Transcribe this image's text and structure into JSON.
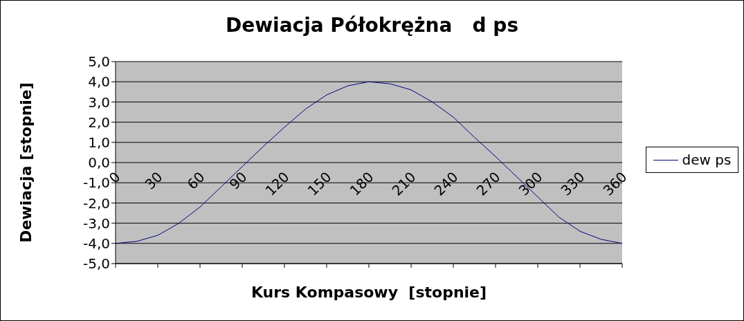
{
  "chart_data": {
    "type": "line",
    "title": "Dewiacja Półokrężna   d ps",
    "xlabel": "Kurs Kompasowy  [stopnie]",
    "ylabel": "Dewiacja [stopnie]",
    "x": [
      0,
      15,
      30,
      45,
      60,
      75,
      90,
      105,
      120,
      135,
      150,
      165,
      180,
      195,
      210,
      225,
      240,
      255,
      270,
      285,
      300,
      315,
      330,
      345,
      360
    ],
    "series": [
      {
        "name": "dew ps",
        "color": "#000080",
        "values": [
          -4.0,
          -3.9,
          -3.6,
          -3.0,
          -2.2,
          -1.2,
          -0.2,
          0.8,
          1.75,
          2.65,
          3.35,
          3.8,
          4.0,
          3.9,
          3.6,
          3.0,
          2.25,
          1.25,
          0.3,
          -0.7,
          -1.7,
          -2.7,
          -3.4,
          -3.8,
          -4.0
        ]
      }
    ],
    "xlim": [
      0,
      360
    ],
    "xticks": [
      0,
      30,
      60,
      90,
      120,
      150,
      180,
      210,
      240,
      270,
      300,
      330,
      360
    ],
    "ylim": [
      -5,
      5
    ],
    "yticks": [
      {
        "value": -5,
        "label": "-5,0"
      },
      {
        "value": -4,
        "label": "-4,0"
      },
      {
        "value": -3,
        "label": "-3,0"
      },
      {
        "value": -2,
        "label": "-2,0"
      },
      {
        "value": -1,
        "label": "-1,0"
      },
      {
        "value": 0,
        "label": "0,0"
      },
      {
        "value": 1,
        "label": "1,0"
      },
      {
        "value": 2,
        "label": "2,0"
      },
      {
        "value": 3,
        "label": "3,0"
      },
      {
        "value": 4,
        "label": "4,0"
      },
      {
        "value": 5,
        "label": "5,0"
      }
    ],
    "grid": "y",
    "legend": "right",
    "marker": "none",
    "line_style": "solid"
  }
}
